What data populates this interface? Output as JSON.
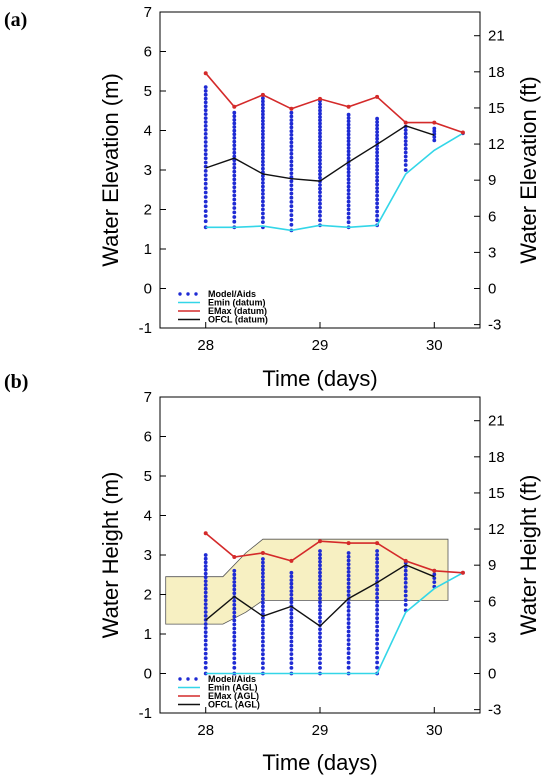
{
  "panel_a": {
    "letter": "a"
  },
  "panel_b": {
    "letter": "b"
  },
  "chart_data": [
    {
      "type": "line",
      "panel": "a",
      "xlabel": "Time (days)",
      "ylabel": "Water Elevation (m)",
      "ylabel_right": "Water Elevation (ft)",
      "xlim": [
        27.6,
        30.4
      ],
      "ylim": [
        -1,
        7
      ],
      "ylim_right": [
        -3.28,
        22.97
      ],
      "xticks": [
        28,
        29,
        30
      ],
      "yticks": [
        -1,
        0,
        1,
        2,
        3,
        4,
        5,
        6,
        7
      ],
      "yticks_right": [
        -3,
        0,
        3,
        6,
        9,
        12,
        15,
        18,
        21
      ],
      "legend": {
        "placement": "bottom-left",
        "entries": [
          "Model/Aids",
          "Emin (datum)",
          "EMax (datum)",
          "OFCL (datum)"
        ]
      },
      "colors": {
        "emin": "#33d6e8",
        "emax": "#d42a2a",
        "ofcl": "#111111",
        "dots": "#1f2bd4"
      },
      "x": [
        28.0,
        28.25,
        28.5,
        28.75,
        29.0,
        29.25,
        29.5,
        29.75,
        30.0,
        30.25
      ],
      "series": [
        {
          "key": "emax",
          "values": [
            5.45,
            4.6,
            4.9,
            4.55,
            4.8,
            4.6,
            4.85,
            4.2,
            4.2,
            3.95
          ]
        },
        {
          "key": "emin",
          "values": [
            1.55,
            1.55,
            1.58,
            1.47,
            1.6,
            1.55,
            1.6,
            2.9,
            3.5,
            3.93
          ]
        },
        {
          "key": "ofcl",
          "values": [
            3.05,
            3.3,
            2.9,
            2.78,
            2.72,
            3.2,
            3.65,
            4.12,
            3.88,
            null
          ]
        }
      ],
      "scatter": [
        {
          "x": 28.0,
          "min": 1.55,
          "max": 5.1,
          "count": 34
        },
        {
          "x": 28.25,
          "min": 1.55,
          "max": 4.45,
          "count": 30
        },
        {
          "x": 28.5,
          "min": 1.55,
          "max": 4.9,
          "count": 38
        },
        {
          "x": 28.75,
          "min": 1.47,
          "max": 4.45,
          "count": 30
        },
        {
          "x": 29.0,
          "min": 1.6,
          "max": 4.75,
          "count": 36
        },
        {
          "x": 29.25,
          "min": 1.55,
          "max": 4.4,
          "count": 32
        },
        {
          "x": 29.5,
          "min": 1.6,
          "max": 4.3,
          "count": 30
        },
        {
          "x": 29.75,
          "min": 3.0,
          "max": 4.1,
          "count": 12
        },
        {
          "x": 30.0,
          "min": 3.75,
          "max": 4.05,
          "count": 5
        },
        {
          "x": 30.25,
          "min": 3.93,
          "max": 3.95,
          "count": 1
        }
      ]
    },
    {
      "type": "line",
      "panel": "b",
      "xlabel": "Time (days)",
      "ylabel": "Water Height (m)",
      "ylabel_right": "Water Height (ft)",
      "xlim": [
        27.6,
        30.4
      ],
      "ylim": [
        -1,
        7
      ],
      "ylim_right": [
        -3.28,
        22.97
      ],
      "xticks": [
        28,
        29,
        30
      ],
      "yticks": [
        -1,
        0,
        1,
        2,
        3,
        4,
        5,
        6,
        7
      ],
      "yticks_right": [
        -3,
        0,
        3,
        6,
        9,
        12,
        15,
        18,
        21
      ],
      "legend": {
        "placement": "bottom-left",
        "entries": [
          "Model/Aids",
          "Emin (AGL)",
          "EMax (AGL)",
          "OFCL (AGL)"
        ]
      },
      "colors": {
        "emin": "#33d6e8",
        "emax": "#d42a2a",
        "ofcl": "#111111",
        "dots": "#1f2bd4",
        "band": "#f7f0c2"
      },
      "x": [
        28.0,
        28.25,
        28.5,
        28.75,
        29.0,
        29.25,
        29.5,
        29.75,
        30.0,
        30.25
      ],
      "series": [
        {
          "key": "emax",
          "values": [
            3.55,
            2.95,
            3.05,
            2.85,
            3.35,
            3.3,
            3.3,
            2.85,
            2.6,
            2.55
          ]
        },
        {
          "key": "emin",
          "values": [
            0.0,
            0.0,
            0.0,
            0.0,
            0.0,
            0.0,
            0.0,
            1.55,
            2.15,
            2.55
          ]
        },
        {
          "key": "ofcl",
          "values": [
            1.35,
            1.95,
            1.45,
            1.7,
            1.2,
            1.9,
            2.3,
            2.75,
            2.45,
            null
          ]
        }
      ],
      "band_polygon": [
        [
          27.65,
          2.45
        ],
        [
          28.15,
          2.45
        ],
        [
          28.35,
          3.05
        ],
        [
          28.5,
          3.4
        ],
        [
          30.12,
          3.4
        ],
        [
          30.12,
          1.85
        ],
        [
          28.5,
          1.85
        ],
        [
          28.35,
          1.55
        ],
        [
          28.15,
          1.25
        ],
        [
          27.65,
          1.25
        ]
      ],
      "scatter": [
        {
          "x": 28.0,
          "min": 0.0,
          "max": 3.0,
          "count": 30
        },
        {
          "x": 28.25,
          "min": 0.0,
          "max": 2.6,
          "count": 26
        },
        {
          "x": 28.5,
          "min": 0.0,
          "max": 2.9,
          "count": 30
        },
        {
          "x": 28.75,
          "min": 0.0,
          "max": 2.55,
          "count": 26
        },
        {
          "x": 29.0,
          "min": 0.0,
          "max": 3.1,
          "count": 32
        },
        {
          "x": 29.25,
          "min": 0.0,
          "max": 3.05,
          "count": 30
        },
        {
          "x": 29.5,
          "min": 0.0,
          "max": 3.1,
          "count": 30
        },
        {
          "x": 29.75,
          "min": 1.6,
          "max": 2.8,
          "count": 12
        },
        {
          "x": 30.0,
          "min": 2.2,
          "max": 2.6,
          "count": 5
        },
        {
          "x": 30.25,
          "min": 2.55,
          "max": 2.57,
          "count": 1
        }
      ]
    }
  ]
}
